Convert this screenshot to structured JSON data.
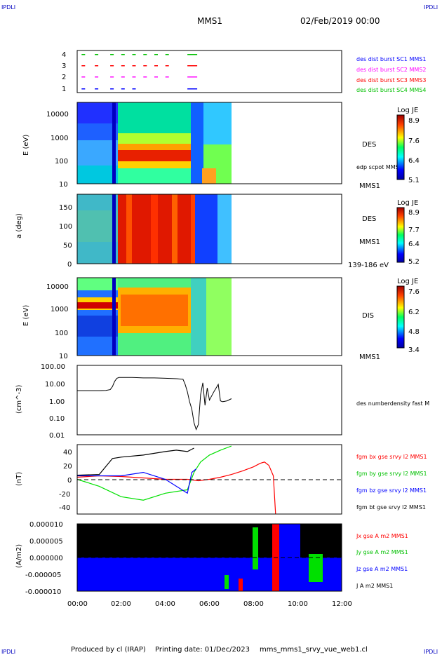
{
  "header": {
    "corner_left": "IPDLI",
    "corner_right": "IPDLI",
    "mission": "MMS1",
    "date": "02/Feb/2019 00:00"
  },
  "footer": {
    "produced": "Produced by cl (IRAP)",
    "printing": "Printing date: 01/Dec/2023",
    "file": "mms_mms1_srvy_vue_web1.cl",
    "corner_left": "IPDLI",
    "corner_right": "IPDLI"
  },
  "colors": {
    "blue": "#0000ff",
    "red": "#ff0000",
    "green": "#00e000",
    "magenta": "#ff00ff",
    "black": "#000000"
  },
  "chart_data": [
    {
      "type": "timeline",
      "panel": "burst",
      "xlim": [
        "00:00",
        "12:00"
      ],
      "yticks": [
        "4",
        "3",
        "2",
        "1"
      ],
      "legend": [
        {
          "label": "des dist burst SC1 MMS1",
          "color": "#0000ff"
        },
        {
          "label": "des dist burst SC2 MMS2",
          "color": "#ff00ff"
        },
        {
          "label": "des dist burst SC3 MMS3",
          "color": "#ff0000"
        },
        {
          "label": "des dist burst SC4 MMS4",
          "color": "#00e000"
        }
      ]
    },
    {
      "type": "heatmap",
      "panel": "des_energy",
      "ylabel": "E (eV)",
      "yscale": "log",
      "ylim": [
        10,
        25000
      ],
      "yticks": [
        "10000",
        "1000",
        "100",
        "10"
      ],
      "colorbar": {
        "title": "Log JE",
        "ticks": [
          "8.9",
          "7.6",
          "6.4",
          "5.1"
        ],
        "range": [
          5.1,
          8.9
        ]
      },
      "labels": [
        "DES",
        "edp scpot MMS1",
        "MMS1"
      ]
    },
    {
      "type": "heatmap",
      "panel": "des_pitch",
      "ylabel": "a (deg)",
      "ylim": [
        0,
        180
      ],
      "yticks": [
        "150",
        "100",
        "50",
        "0"
      ],
      "colorbar": {
        "title": "Log JE",
        "ticks": [
          "8.9",
          "7.7",
          "6.4",
          "5.2"
        ],
        "range": [
          5.2,
          8.9
        ]
      },
      "labels": [
        "DES",
        "MMS1",
        "139-186 eV"
      ]
    },
    {
      "type": "heatmap",
      "panel": "dis_energy",
      "ylabel": "E (eV)",
      "yscale": "log",
      "ylim": [
        10,
        25000
      ],
      "yticks": [
        "10000",
        "1000",
        "100",
        "10"
      ],
      "colorbar": {
        "title": "Log JE",
        "ticks": [
          "7.6",
          "6.2",
          "4.8",
          "3.4"
        ],
        "range": [
          3.4,
          7.6
        ]
      },
      "labels": [
        "DIS",
        "MMS1"
      ]
    },
    {
      "type": "line",
      "panel": "density",
      "ylabel": "(cm^-3)",
      "yscale": "log",
      "ylim": [
        0.01,
        100
      ],
      "yticks": [
        "100.00",
        "10.00",
        "1.00",
        "0.10",
        "0.01"
      ],
      "series": [
        {
          "name": "des numberdensity fast M",
          "color": "#000000",
          "x": [
            0.0,
            1.0,
            1.3,
            1.5,
            1.6,
            1.7,
            1.8,
            1.9,
            2.5,
            3.0,
            3.5,
            4.0,
            4.5,
            4.8,
            4.9,
            5.0,
            5.1,
            5.2,
            5.3,
            5.4,
            5.5,
            5.6,
            5.7,
            5.8,
            5.9,
            6.0,
            6.2,
            6.4,
            6.5,
            6.6,
            6.8,
            7.0
          ],
          "y": [
            3.5,
            3.5,
            3.6,
            4.0,
            6.0,
            12,
            18,
            20,
            20,
            19,
            19,
            18,
            17,
            16,
            8,
            3,
            0.8,
            0.3,
            0.05,
            0.02,
            0.04,
            2.0,
            10,
            0.5,
            5,
            1.0,
            3.0,
            8,
            0.9,
            0.8,
            0.9,
            1.2
          ]
        }
      ]
    },
    {
      "type": "line",
      "panel": "magnetic_field",
      "ylabel": "(nT)",
      "ylim": [
        -50,
        50
      ],
      "yticks": [
        "40",
        "20",
        "0",
        "-20",
        "-40"
      ],
      "series": [
        {
          "name": "fgm bx gse srvy l2 MMS1",
          "color": "#ff0000",
          "x": [
            0,
            1,
            2,
            3,
            4,
            5,
            5.5,
            6,
            6.5,
            7,
            7.5,
            8,
            8.3,
            8.5,
            8.7,
            8.9,
            9.0
          ],
          "y": [
            3,
            5,
            4,
            2,
            0,
            0,
            -2,
            0,
            3,
            7,
            12,
            18,
            23,
            25,
            20,
            5,
            -50
          ]
        },
        {
          "name": "fgm by gse srvy l2 MMS1",
          "color": "#00e000",
          "x": [
            0,
            1,
            2,
            3,
            4,
            5,
            5.3,
            5.6,
            6,
            6.5,
            7.0
          ],
          "y": [
            0,
            -10,
            -25,
            -30,
            -20,
            -15,
            10,
            25,
            35,
            42,
            48
          ]
        },
        {
          "name": "fgm bz gse srvy l2 MMS1",
          "color": "#0000ff",
          "x": [
            0,
            1,
            2,
            3,
            4,
            5,
            5.2,
            5.4
          ],
          "y": [
            5,
            5,
            5,
            10,
            0,
            -20,
            10,
            15
          ]
        },
        {
          "name": "fgm bt gse srvy l2 MMS1",
          "color": "#000000",
          "x": [
            0,
            1,
            1.6,
            2,
            3,
            4,
            4.5,
            5,
            5.3
          ],
          "y": [
            6,
            7,
            30,
            32,
            35,
            40,
            42,
            40,
            45
          ]
        }
      ]
    },
    {
      "type": "area",
      "panel": "current_density",
      "ylabel": "(A/m2)",
      "ylim": [
        -1e-05,
        1e-05
      ],
      "yticks": [
        "0.000010",
        "0.000005",
        "0.000000",
        "-0.000005",
        "-0.000010"
      ],
      "series": [
        {
          "name": "Jx gse A m2 MMS1",
          "color": "#ff0000"
        },
        {
          "name": "Jy gse A m2 MMS1",
          "color": "#00e000"
        },
        {
          "name": "Jz gse A m2 MMS1",
          "color": "#0000ff"
        },
        {
          "name": "J A m2 MMS1",
          "color": "#000000"
        }
      ]
    }
  ],
  "xaxis": {
    "ticks": [
      "00:00",
      "02:00",
      "04:00",
      "06:00",
      "08:00",
      "10:00",
      "12:00"
    ]
  }
}
